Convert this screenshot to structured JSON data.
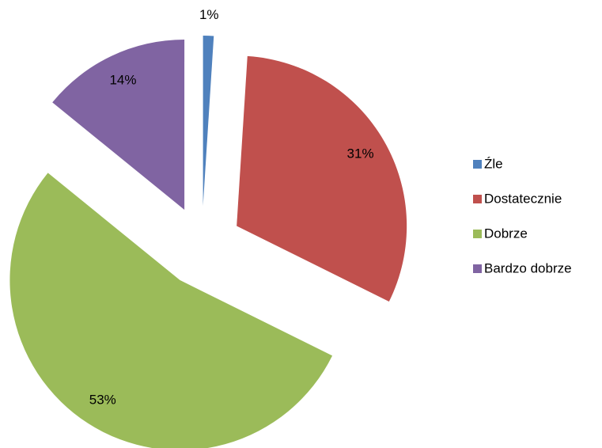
{
  "chart_data": {
    "type": "pie",
    "categories": [
      "Źle",
      "Dostatecznie",
      "Dobrze",
      "Bardzo dobrze"
    ],
    "values": [
      1,
      31,
      53,
      14
    ],
    "value_labels": [
      "1%",
      "31%",
      "53%",
      "14%"
    ],
    "colors": [
      "#4f81bd",
      "#c0504d",
      "#9bbb59",
      "#8064a2"
    ],
    "exploded": true,
    "legend": "right"
  }
}
